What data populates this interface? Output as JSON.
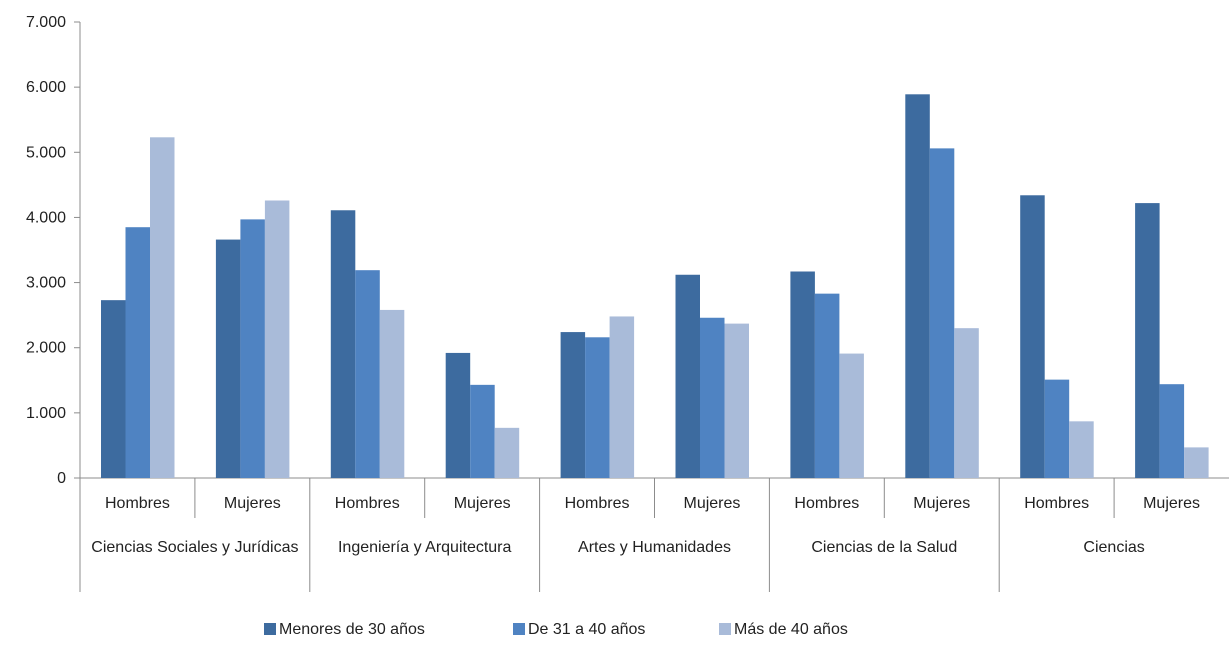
{
  "chart_data": {
    "type": "bar",
    "title": "",
    "xlabel": "",
    "ylabel": "",
    "ylim": [
      0,
      7000
    ],
    "yticks": [
      0,
      1000,
      2000,
      3000,
      4000,
      5000,
      6000,
      7000
    ],
    "ytick_labels": [
      "0",
      "1.000",
      "2.000",
      "3.000",
      "4.000",
      "5.000",
      "6.000",
      "7.000"
    ],
    "grid": false,
    "legend_position": "bottom",
    "groups": [
      {
        "label": "Ciencias Sociales y Jurídicas",
        "categories": [
          "Hombres",
          "Mujeres"
        ]
      },
      {
        "label": "Ingeniería y Arquitectura",
        "categories": [
          "Hombres",
          "Mujeres"
        ]
      },
      {
        "label": "Artes y Humanidades",
        "categories": [
          "Hombres",
          "Mujeres"
        ]
      },
      {
        "label": "Ciencias de la Salud",
        "categories": [
          "Hombres",
          "Mujeres"
        ]
      },
      {
        "label": "Ciencias",
        "categories": [
          "Hombres",
          "Mujeres"
        ]
      }
    ],
    "series": [
      {
        "name": "Menores de 30 años",
        "color": "#3d6b9f",
        "values": [
          2730,
          3660,
          4110,
          1920,
          2240,
          3120,
          3170,
          5890,
          4340,
          4220
        ]
      },
      {
        "name": "De 31 a 40 años",
        "color": "#4f83c2",
        "values": [
          3850,
          3970,
          3190,
          1430,
          2160,
          2460,
          2830,
          5060,
          1510,
          1440
        ]
      },
      {
        "name": "Más de 40 años",
        "color": "#a9bbd9",
        "values": [
          5230,
          4260,
          2580,
          770,
          2480,
          2370,
          1910,
          2300,
          870,
          470
        ]
      }
    ]
  }
}
